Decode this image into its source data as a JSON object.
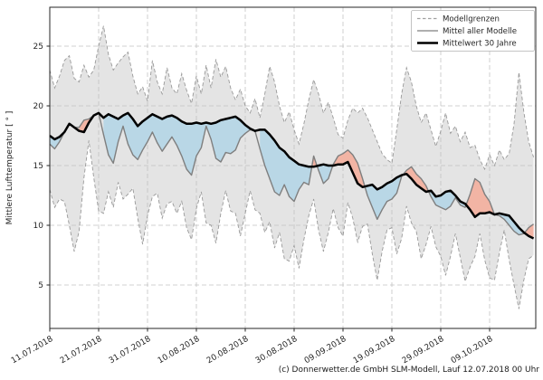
{
  "figure": {
    "footer": "(c) Donnerwetter.de GmbH SLM-Modell, Lauf 12.07.2018 00 Uhr"
  },
  "chart_data": {
    "type": "line",
    "title": "",
    "xlabel": "",
    "ylabel": "Mittlere Lufttemperatur [ ° ]",
    "ylim": [
      1.3,
      28.4
    ],
    "yticks": [
      5,
      10,
      15,
      20,
      25
    ],
    "grid": true,
    "legend_position": "top-right",
    "x_start": "11.07.2018",
    "x_end": "18.10.2018",
    "x_step_days": 1,
    "x_days_total": 100,
    "x_tick_day_index": [
      0,
      10,
      20,
      30,
      40,
      50,
      60,
      70,
      80,
      90
    ],
    "x_tick_labels": [
      "11.07.2018",
      "21.07.2018",
      "31.07.2018",
      "10.08.2018",
      "20.08.2018",
      "30.08.2018",
      "09.09.2018",
      "19.09.2018",
      "29.09.2018",
      "09.10.2018"
    ],
    "legend": [
      {
        "label": "Modellgrenzen",
        "line": "dashed",
        "color": "#a0a0a0"
      },
      {
        "label": "Mittel aller Modelle",
        "line": "solid",
        "color": "#7f7f7f"
      },
      {
        "label": "Mittelwert 30 Jahre",
        "line": "solid-bold",
        "color": "#000000"
      }
    ],
    "fills": {
      "model_range_color": "#e4e4e4",
      "colder_than_normal_color": "#b9d7e6",
      "warmer_than_normal_color": "#f2b4a4"
    },
    "series": [
      {
        "name": "Modellgrenze oben",
        "role": "upper-bound",
        "line": "dashed",
        "color": "#999999",
        "values": [
          23.0,
          21.5,
          22.5,
          23.8,
          24.2,
          22.3,
          22.0,
          23.4,
          22.4,
          23.0,
          25.0,
          26.7,
          24.3,
          23.0,
          23.6,
          24.1,
          24.5,
          22.5,
          21.0,
          21.6,
          20.4,
          23.8,
          22.0,
          21.0,
          23.2,
          21.5,
          21.0,
          22.7,
          21.3,
          20.2,
          22.5,
          21.0,
          23.4,
          21.5,
          23.9,
          22.4,
          23.3,
          21.5,
          20.5,
          21.4,
          20.0,
          19.4,
          20.6,
          19.0,
          21.0,
          23.3,
          22.0,
          20.0,
          18.6,
          19.5,
          18.0,
          16.8,
          18.5,
          20.5,
          22.2,
          21.0,
          19.4,
          20.3,
          19.0,
          17.6,
          17.3,
          18.8,
          19.8,
          19.4,
          19.8,
          19.0,
          18.0,
          17.0,
          16.0,
          15.5,
          15.2,
          18.0,
          21.0,
          23.2,
          22.0,
          20.0,
          18.6,
          19.4,
          18.0,
          16.6,
          17.9,
          19.4,
          17.7,
          18.3,
          17.0,
          17.8,
          16.5,
          16.7,
          15.5,
          14.7,
          15.9,
          15.0,
          16.3,
          15.5,
          16.0,
          18.5,
          22.8,
          19.5,
          17.0,
          15.7
        ]
      },
      {
        "name": "Modellgrenze unten",
        "role": "lower-bound",
        "line": "dashed",
        "color": "#999999",
        "values": [
          13.0,
          11.5,
          12.2,
          12.0,
          10.0,
          7.8,
          9.5,
          14.0,
          17.1,
          14.0,
          11.2,
          11.0,
          12.8,
          11.5,
          13.6,
          12.2,
          12.6,
          13.1,
          10.6,
          8.4,
          10.8,
          12.4,
          12.7,
          10.6,
          11.8,
          12.0,
          11.0,
          12.0,
          9.8,
          8.8,
          11.4,
          12.8,
          10.2,
          10.0,
          8.5,
          11.0,
          12.9,
          11.2,
          11.0,
          9.1,
          11.0,
          12.9,
          11.3,
          11.0,
          9.4,
          10.3,
          8.1,
          9.4,
          7.2,
          7.0,
          8.3,
          6.4,
          8.8,
          10.8,
          12.2,
          9.6,
          7.8,
          9.4,
          11.4,
          9.8,
          9.1,
          11.9,
          10.6,
          8.6,
          9.9,
          10.1,
          7.6,
          5.4,
          7.8,
          9.6,
          9.8,
          7.6,
          8.9,
          11.6,
          10.2,
          9.5,
          7.2,
          8.4,
          9.9,
          8.2,
          7.4,
          5.8,
          7.4,
          9.3,
          7.3,
          5.3,
          6.5,
          7.4,
          9.3,
          7.1,
          5.6,
          5.4,
          7.7,
          9.6,
          7.1,
          5.0,
          3.0,
          5.4,
          7.2,
          7.5
        ]
      },
      {
        "name": "Mittel aller Modelle",
        "role": "model-mean",
        "line": "solid",
        "color": "#7f7f7f",
        "values": [
          16.8,
          16.4,
          17.0,
          17.8,
          18.5,
          18.2,
          18.2,
          18.8,
          18.9,
          19.2,
          19.4,
          17.6,
          15.9,
          15.2,
          17.0,
          18.3,
          16.8,
          15.9,
          15.5,
          16.3,
          17.0,
          17.8,
          16.9,
          16.2,
          16.8,
          17.4,
          16.7,
          15.8,
          14.7,
          14.2,
          15.8,
          16.5,
          18.3,
          17.2,
          15.6,
          15.3,
          16.1,
          16.0,
          16.3,
          17.3,
          17.7,
          18.0,
          17.9,
          16.4,
          15.0,
          13.9,
          12.8,
          12.5,
          13.4,
          12.4,
          12.0,
          13.0,
          13.6,
          13.4,
          15.8,
          14.6,
          13.5,
          13.9,
          15.1,
          15.8,
          16.0,
          16.3,
          15.9,
          15.2,
          13.9,
          12.5,
          11.5,
          10.5,
          11.3,
          12.0,
          12.2,
          12.7,
          14.1,
          14.6,
          14.9,
          14.3,
          13.9,
          13.3,
          12.4,
          11.7,
          11.5,
          11.3,
          11.6,
          12.3,
          11.7,
          11.5,
          12.6,
          13.9,
          13.6,
          12.6,
          12.0,
          10.9,
          10.8,
          10.5,
          10.0,
          9.5,
          9.2,
          9.3,
          9.8,
          10.1
        ]
      },
      {
        "name": "Mittelwert 30 Jahre",
        "role": "mean-30y",
        "line": "solid-bold",
        "color": "#000000",
        "values": [
          17.5,
          17.2,
          17.4,
          17.8,
          18.5,
          18.2,
          17.9,
          17.8,
          18.6,
          19.2,
          19.4,
          19.0,
          19.3,
          19.1,
          18.9,
          19.2,
          19.4,
          18.9,
          18.3,
          18.7,
          19.0,
          19.3,
          19.1,
          18.9,
          19.1,
          19.2,
          19.0,
          18.7,
          18.5,
          18.5,
          18.6,
          18.5,
          18.6,
          18.5,
          18.6,
          18.8,
          18.9,
          19.0,
          19.1,
          18.8,
          18.4,
          18.1,
          17.9,
          18.0,
          18.0,
          17.6,
          17.1,
          16.5,
          16.2,
          15.7,
          15.4,
          15.1,
          15.0,
          14.9,
          14.9,
          15.0,
          15.1,
          15.0,
          15.0,
          15.1,
          15.1,
          15.3,
          14.4,
          13.5,
          13.2,
          13.3,
          13.4,
          13.0,
          13.2,
          13.5,
          13.7,
          14.0,
          14.2,
          14.3,
          13.9,
          13.4,
          13.1,
          12.8,
          12.9,
          12.4,
          12.5,
          12.8,
          12.9,
          12.5,
          12.0,
          11.8,
          11.3,
          10.7,
          11.0,
          11.0,
          11.1,
          10.9,
          11.0,
          10.9,
          10.8,
          10.3,
          9.8,
          9.4,
          9.1,
          8.9
        ]
      }
    ]
  }
}
